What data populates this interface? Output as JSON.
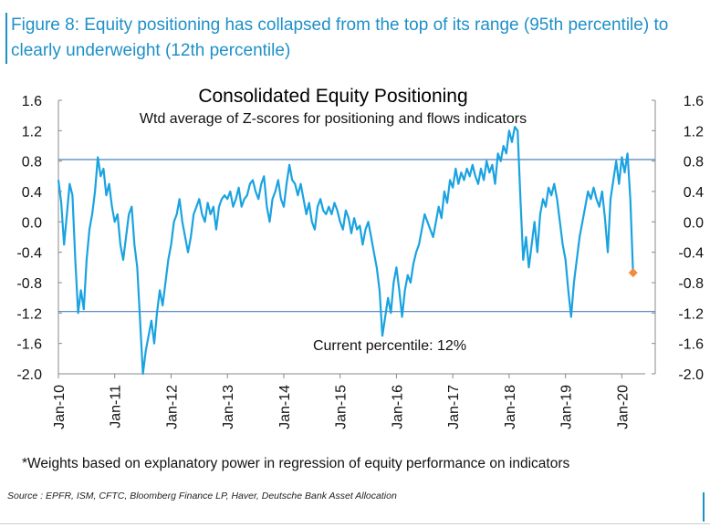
{
  "figure": {
    "title": "Figure 8: Equity positioning has collapsed from the top of its range (95th percentile) to clearly underweight (12th percentile)",
    "footnote": "*Weights based on explanatory power in regression of equity performance on indicators",
    "source": "Source : EPFR, ISM, CFTC, Bloomberg Finance LP, Haver, Deutsche Bank Asset Allocation"
  },
  "colors": {
    "line": "#1aa3e0",
    "accent": "#1e90c8",
    "marker": "#f08c3c",
    "refline": "#4a7fc1"
  },
  "chart_data": {
    "type": "line",
    "title": "Consolidated Equity Positioning",
    "subtitle": "Wtd average of Z-scores for positioning and flows indicators",
    "annotation": "Current percentile: 12%",
    "ylim": [
      -2.0,
      1.6
    ],
    "yticks": [
      "1.6",
      "1.2",
      "0.8",
      "0.4",
      "0.0",
      "-0.4",
      "-0.8",
      "-1.2",
      "-1.6",
      "-2.0"
    ],
    "ytick_values": [
      1.6,
      1.2,
      0.8,
      0.4,
      0.0,
      -0.4,
      -0.8,
      -1.2,
      -1.6,
      -2.0
    ],
    "xlim": [
      2010.0,
      2020.35
    ],
    "xticks": [
      "Jan-10",
      "Jan-11",
      "Jan-12",
      "Jan-13",
      "Jan-14",
      "Jan-15",
      "Jan-16",
      "Jan-17",
      "Jan-18",
      "Jan-19",
      "Jan-20"
    ],
    "xtick_values": [
      2010,
      2011,
      2012,
      2013,
      2014,
      2015,
      2016,
      2017,
      2018,
      2019,
      2020
    ],
    "reference_lines": [
      0.82,
      -1.18
    ],
    "series": [
      {
        "name": "Consolidated Equity Positioning",
        "x": [
          2010.0,
          2010.05,
          2010.1,
          2010.15,
          2010.2,
          2010.25,
          2010.3,
          2010.35,
          2010.4,
          2010.45,
          2010.5,
          2010.55,
          2010.6,
          2010.65,
          2010.7,
          2010.75,
          2010.8,
          2010.85,
          2010.9,
          2010.95,
          2011.0,
          2011.05,
          2011.1,
          2011.15,
          2011.2,
          2011.25,
          2011.3,
          2011.35,
          2011.4,
          2011.45,
          2011.5,
          2011.55,
          2011.6,
          2011.65,
          2011.7,
          2011.75,
          2011.8,
          2011.85,
          2011.9,
          2011.95,
          2012.0,
          2012.05,
          2012.1,
          2012.15,
          2012.2,
          2012.25,
          2012.3,
          2012.35,
          2012.4,
          2012.45,
          2012.5,
          2012.55,
          2012.6,
          2012.65,
          2012.7,
          2012.75,
          2012.8,
          2012.85,
          2012.9,
          2012.95,
          2013.0,
          2013.05,
          2013.1,
          2013.15,
          2013.2,
          2013.25,
          2013.3,
          2013.35,
          2013.4,
          2013.45,
          2013.5,
          2013.55,
          2013.6,
          2013.65,
          2013.7,
          2013.75,
          2013.8,
          2013.85,
          2013.9,
          2013.95,
          2014.0,
          2014.05,
          2014.1,
          2014.15,
          2014.2,
          2014.25,
          2014.3,
          2014.35,
          2014.4,
          2014.45,
          2014.5,
          2014.55,
          2014.6,
          2014.65,
          2014.7,
          2014.75,
          2014.8,
          2014.85,
          2014.9,
          2014.95,
          2015.0,
          2015.05,
          2015.1,
          2015.15,
          2015.2,
          2015.25,
          2015.3,
          2015.35,
          2015.4,
          2015.45,
          2015.5,
          2015.55,
          2015.6,
          2015.65,
          2015.7,
          2015.75,
          2015.8,
          2015.85,
          2015.9,
          2015.95,
          2016.0,
          2016.05,
          2016.1,
          2016.15,
          2016.2,
          2016.25,
          2016.3,
          2016.35,
          2016.4,
          2016.45,
          2016.5,
          2016.55,
          2016.6,
          2016.65,
          2016.7,
          2016.75,
          2016.8,
          2016.85,
          2016.9,
          2016.95,
          2017.0,
          2017.05,
          2017.1,
          2017.15,
          2017.2,
          2017.25,
          2017.3,
          2017.35,
          2017.4,
          2017.45,
          2017.5,
          2017.55,
          2017.6,
          2017.65,
          2017.7,
          2017.75,
          2017.8,
          2017.85,
          2017.9,
          2017.95,
          2018.0,
          2018.05,
          2018.1,
          2018.15,
          2018.2,
          2018.25,
          2018.3,
          2018.35,
          2018.4,
          2018.45,
          2018.5,
          2018.55,
          2018.6,
          2018.65,
          2018.7,
          2018.75,
          2018.8,
          2018.85,
          2018.9,
          2018.95,
          2019.0,
          2019.05,
          2019.1,
          2019.15,
          2019.2,
          2019.25,
          2019.3,
          2019.35,
          2019.4,
          2019.45,
          2019.5,
          2019.55,
          2019.6,
          2019.65,
          2019.7,
          2019.75,
          2019.8,
          2019.85,
          2019.9,
          2019.95,
          2020.0,
          2020.05,
          2020.1,
          2020.15,
          2020.2
        ],
        "y": [
          0.55,
          0.25,
          -0.3,
          0.1,
          0.5,
          0.35,
          -0.5,
          -1.2,
          -0.9,
          -1.15,
          -0.5,
          -0.1,
          0.1,
          0.4,
          0.85,
          0.6,
          0.7,
          0.35,
          0.5,
          0.2,
          0.0,
          0.1,
          -0.3,
          -0.5,
          -0.2,
          0.1,
          0.2,
          -0.3,
          -0.6,
          -1.3,
          -2.0,
          -1.7,
          -1.5,
          -1.3,
          -1.6,
          -1.2,
          -0.9,
          -1.1,
          -0.8,
          -0.5,
          -0.3,
          0.0,
          0.1,
          0.3,
          0.0,
          -0.2,
          -0.4,
          -0.2,
          0.1,
          0.2,
          0.3,
          0.1,
          0.0,
          0.25,
          0.1,
          0.2,
          -0.1,
          0.2,
          0.3,
          0.35,
          0.3,
          0.4,
          0.2,
          0.3,
          0.45,
          0.2,
          0.3,
          0.35,
          0.5,
          0.55,
          0.4,
          0.3,
          0.5,
          0.6,
          0.2,
          0.0,
          0.3,
          0.4,
          0.55,
          0.3,
          0.2,
          0.5,
          0.75,
          0.55,
          0.5,
          0.35,
          0.5,
          0.3,
          0.1,
          0.25,
          0.0,
          -0.1,
          0.2,
          0.3,
          0.15,
          0.1,
          0.2,
          0.1,
          0.25,
          0.15,
          0.0,
          -0.1,
          0.15,
          0.05,
          -0.15,
          0.05,
          -0.1,
          -0.05,
          -0.3,
          -0.1,
          0.0,
          -0.2,
          -0.4,
          -0.6,
          -0.9,
          -1.5,
          -1.25,
          -1.0,
          -1.2,
          -0.8,
          -0.6,
          -0.9,
          -1.25,
          -0.9,
          -0.7,
          -0.8,
          -0.55,
          -0.4,
          -0.3,
          -0.1,
          0.1,
          0.0,
          -0.1,
          -0.2,
          0.0,
          0.2,
          0.05,
          0.4,
          0.25,
          0.55,
          0.45,
          0.7,
          0.5,
          0.65,
          0.55,
          0.7,
          0.6,
          0.75,
          0.6,
          0.5,
          0.7,
          0.55,
          0.8,
          0.65,
          0.75,
          0.5,
          0.9,
          0.8,
          1.0,
          0.9,
          1.2,
          1.05,
          1.25,
          1.2,
          0.3,
          -0.5,
          -0.2,
          -0.6,
          -0.3,
          0.0,
          -0.4,
          0.1,
          0.3,
          0.2,
          0.45,
          0.35,
          0.5,
          0.3,
          0.0,
          -0.3,
          -0.5,
          -0.9,
          -1.25,
          -0.8,
          -0.5,
          -0.2,
          0.0,
          0.2,
          0.4,
          0.3,
          0.45,
          0.3,
          0.2,
          0.4,
          0.05,
          -0.4,
          0.3,
          0.55,
          0.8,
          0.5,
          0.85,
          0.65,
          0.9,
          0.3,
          -0.67
        ],
        "last_point": {
          "x": 2020.2,
          "y": -0.67
        }
      }
    ]
  }
}
